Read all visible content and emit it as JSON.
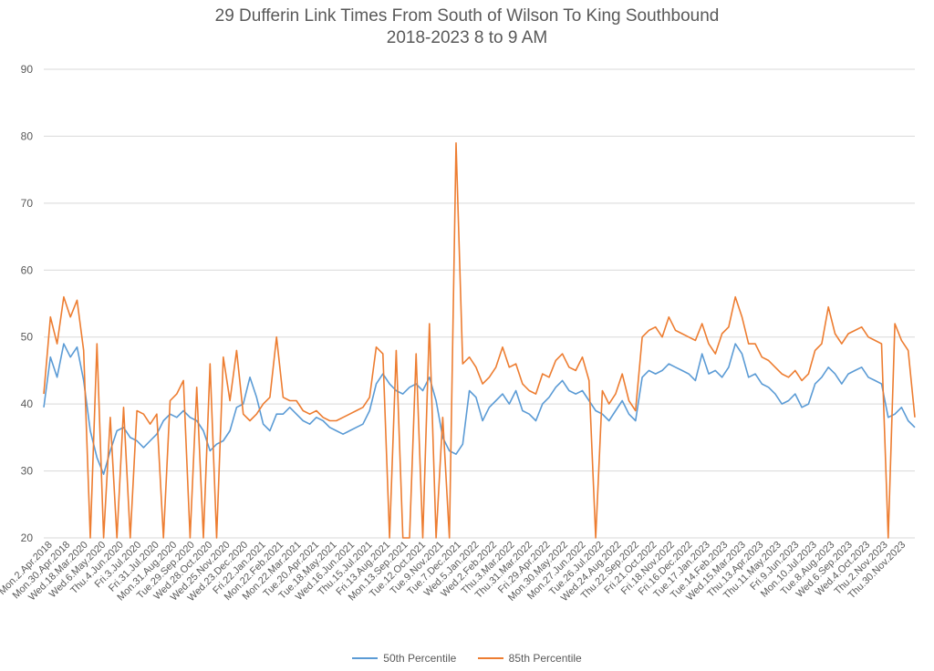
{
  "chart_data": {
    "type": "line",
    "title": "29 Dufferin Link Times From South of Wilson To King Southbound",
    "subtitle": "2018-2023 8 to 9 AM",
    "xlabel": "",
    "ylabel": "",
    "ylim": [
      20,
      90
    ],
    "yticks": [
      20,
      30,
      40,
      50,
      60,
      70,
      80,
      90
    ],
    "grid": "horizontal",
    "legend": "bottom",
    "x_tick_labels": [
      "Mon.2.Apr.2018",
      "Mon.30.Apr.2018",
      "Wed.18.Mar.2020",
      "Wed.6.May.2020",
      "Thu.4.Jun.2020",
      "Fri.3.Jul.2020",
      "Fri.31.Jul.2020",
      "Mon.31.Aug.2020",
      "Tue.29.Sep.2020",
      "Wed.28.Oct.2020",
      "Wed.25.Nov.2020",
      "Wed.23.Dec.2020",
      "Fri.22.Jan.2021",
      "Mon.22.Feb.2021",
      "Mon.22.Mar.2021",
      "Tue.20.Apr.2021",
      "Tue.18.May.2021",
      "Wed.16.Jun.2021",
      "Thu.15.Jul.2021",
      "Fri.13.Aug.2021",
      "Mon.13.Sep.2021",
      "Tue.12.Oct.2021",
      "Tue.9.Nov.2021",
      "Tue.7.Dec.2021",
      "Wed.5.Jan.2022",
      "Wed.2.Feb.2022",
      "Thu.3.Mar.2022",
      "Thu.31.Mar.2022",
      "Fri.29.Apr.2022",
      "Mon.30.May.2022",
      "Mon.27.Jun.2022",
      "Tue.26.Jul.2022",
      "Wed.24.Aug.2022",
      "Thu.22.Sep.2022",
      "Fri.21.Oct.2022",
      "Fri.18.Nov.2022",
      "Fri.16.Dec.2022",
      "Tue.17.Jan.2023",
      "Tue.14.Feb.2023",
      "Wed.15.Mar.2023",
      "Thu.13.Apr.2023",
      "Thu.11.May.2023",
      "Fri.9.Jun.2023",
      "Mon.10.Jul.2023",
      "Tue.8.Aug.2023",
      "Wed.6.Sep.2023",
      "Wed.4.Oct.2023",
      "Thu.2.Nov.2023",
      "Thu.30.Nov.2023"
    ],
    "colors": {
      "p50": "#5b9bd5",
      "p85": "#ed7d31",
      "grid": "#d9d9d9"
    },
    "series": [
      {
        "name": "50th Percentile",
        "values": [
          39.5,
          47,
          44,
          49,
          47,
          48.5,
          43.5,
          36,
          32,
          29.5,
          33,
          36,
          36.5,
          35,
          34.5,
          33.5,
          34.5,
          35.5,
          37.5,
          38.5,
          38,
          39,
          38,
          37.5,
          36,
          33,
          34,
          34.5,
          36,
          39.5,
          40,
          44,
          41,
          37,
          36,
          38.5,
          38.5,
          39.5,
          38.5,
          37.5,
          37,
          38,
          37.5,
          36.5,
          36,
          35.5,
          36,
          36.5,
          37,
          39,
          43,
          44.5,
          43,
          42,
          41.5,
          42.5,
          43,
          42,
          44,
          40.5,
          35,
          33,
          32.5,
          34,
          42,
          41,
          37.5,
          39.5,
          40.5,
          41.5,
          40,
          42,
          39,
          38.5,
          37.5,
          40,
          41,
          42.5,
          43.5,
          42,
          41.5,
          42,
          40.5,
          39,
          38.5,
          37.5,
          39,
          40.5,
          38.5,
          37.5,
          44,
          45,
          44.5,
          45,
          46,
          45.5,
          45,
          44.5,
          43.5,
          47.5,
          44.5,
          45,
          44,
          45.5,
          49,
          47.5,
          44,
          44.5,
          43,
          42.5,
          41.5,
          40,
          40.5,
          41.5,
          39.5,
          40,
          43,
          44,
          45.5,
          44.5,
          43,
          44.5,
          45,
          45.5,
          44,
          43.5,
          43,
          38,
          38.5,
          39.5,
          37.5,
          36.5
        ]
      },
      {
        "name": "85th Percentile",
        "values": [
          41.5,
          53,
          49,
          56,
          53,
          55.5,
          48,
          20,
          49,
          20,
          38,
          20,
          39.5,
          20,
          39,
          38.5,
          37,
          38.5,
          20,
          40.5,
          41.5,
          43.5,
          20,
          42.5,
          20,
          46,
          20,
          47,
          40.5,
          48,
          38.5,
          37.5,
          38.5,
          40,
          41,
          50,
          41,
          40.5,
          40.5,
          39,
          38.5,
          39,
          38,
          37.5,
          37.5,
          38,
          38.5,
          39,
          39.5,
          41,
          48.5,
          47.5,
          20,
          48,
          20,
          20,
          47.5,
          20,
          52,
          20,
          38,
          20,
          79,
          46,
          47,
          45.5,
          43,
          44,
          45.5,
          48.5,
          45.5,
          46,
          43,
          42,
          41.5,
          44.5,
          44,
          46.5,
          47.5,
          45.5,
          45,
          47,
          43.5,
          20,
          42,
          40,
          41.5,
          44.5,
          40.5,
          39,
          50,
          51,
          51.5,
          50,
          53,
          51,
          50.5,
          50,
          49.5,
          52,
          49,
          47.5,
          50.5,
          51.5,
          56,
          53,
          49,
          49,
          47,
          46.5,
          45.5,
          44.5,
          44,
          45,
          43.5,
          44.5,
          48,
          49,
          54.5,
          50.5,
          49,
          50.5,
          51,
          51.5,
          50,
          49.5,
          49,
          20,
          52,
          49.5,
          48,
          38
        ]
      }
    ]
  }
}
